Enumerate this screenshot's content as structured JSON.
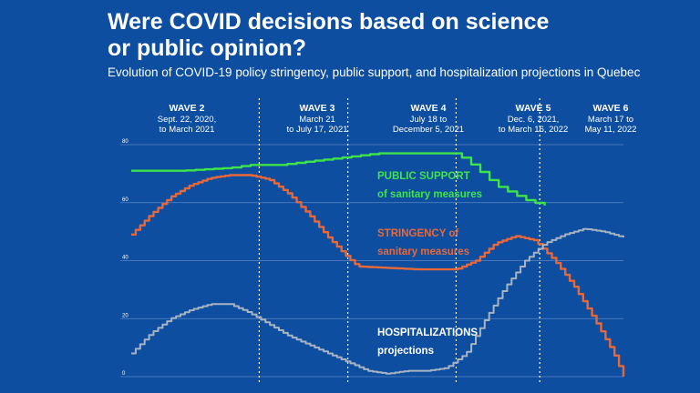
{
  "title_line1": "Were COVID decisions based on science",
  "title_line2": "or public opinion?",
  "subtitle": "Evolution of COVID-19 policy stringency, public support, and hospitalization projections in Quebec",
  "colors": {
    "background": "#0d4ea0",
    "public_support": "#3ee44a",
    "stringency": "#e8683a",
    "hospitalizations": "#a9b4c2",
    "grid": "#5c85c2",
    "divider": "#ffffff"
  },
  "waves": [
    {
      "name": "WAVE 2",
      "dates_line1": "Sept. 22, 2020,",
      "dates_line2": "to March 2021"
    },
    {
      "name": "WAVE 3",
      "dates_line1": "March 21",
      "dates_line2": "to July 17, 2021"
    },
    {
      "name": "WAVE 4",
      "dates_line1": "July 18 to",
      "dates_line2": "December 5, 2021"
    },
    {
      "name": "WAVE 5",
      "dates_line1": "Dec. 6, 2021,",
      "dates_line2": "to March 16, 2022"
    },
    {
      "name": "WAVE 6",
      "dates_line1": "March 17 to",
      "dates_line2": "May 11, 2022"
    }
  ],
  "annotations": {
    "public_support_line1": "PUBLIC SUPPORT",
    "public_support_line2": "of sanitary measures",
    "stringency_line1": "STRINGENCY of",
    "stringency_line2": "sanitary measures",
    "hosp_line1": "HOSPITALIZATIONS",
    "hosp_line2": "projections"
  },
  "chart_data": {
    "type": "line",
    "ylim": [
      0,
      80
    ],
    "yticks": [
      "0",
      "20",
      "40",
      "60",
      "80"
    ],
    "xlim": [
      0,
      100
    ],
    "wave_boundaries": [
      26,
      44,
      66,
      83
    ],
    "grid": true,
    "series": [
      {
        "key": "public_support",
        "x": [
          0,
          10,
          20,
          24,
          30,
          35,
          40,
          50,
          60,
          66,
          70,
          74,
          80,
          84
        ],
        "values": [
          71,
          71,
          72,
          73,
          73,
          74,
          75,
          77,
          77,
          77,
          72,
          66,
          61,
          59
        ]
      },
      {
        "key": "stringency",
        "x": [
          0,
          4,
          8,
          12,
          16,
          20,
          24,
          28,
          32,
          36,
          40,
          44,
          46,
          52,
          58,
          62,
          66,
          70,
          74,
          78,
          82,
          86,
          90,
          94,
          98,
          100
        ],
        "values": [
          49,
          56,
          62,
          66,
          68.5,
          69.5,
          69.5,
          68,
          63,
          56,
          48,
          41,
          38,
          37.5,
          37,
          37,
          37,
          40,
          46,
          48.5,
          47,
          40,
          31,
          20,
          8,
          0
        ]
      },
      {
        "key": "hospitalizations",
        "x": [
          0,
          4,
          8,
          12,
          16,
          20,
          24,
          28,
          32,
          36,
          40,
          44,
          48,
          52,
          56,
          60,
          64,
          68,
          72,
          76,
          80,
          84,
          88,
          92,
          96,
          100
        ],
        "values": [
          8,
          15,
          20,
          23,
          25,
          25,
          22,
          18,
          14,
          11,
          8,
          5,
          2,
          1,
          2,
          2,
          3,
          8,
          20,
          31,
          40,
          46,
          49,
          51,
          50,
          48
        ]
      }
    ]
  }
}
